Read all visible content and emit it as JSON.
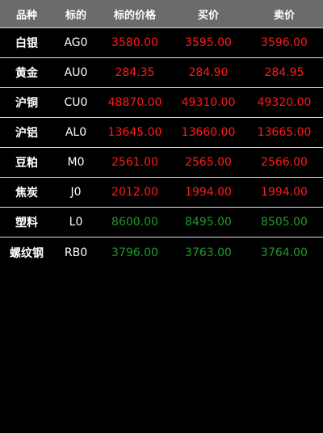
{
  "header": {
    "col_name": "品种",
    "col_code": "标的",
    "col_price": "标的价格",
    "col_buy": "买价",
    "col_sell": "卖价"
  },
  "colors": {
    "header_bg": "#6b6b6b",
    "up": "#ff1a1a",
    "down": "#1f9a2a",
    "text": "#ffffff",
    "background": "#000000"
  },
  "rows": [
    {
      "name": "白银",
      "code": "AG0",
      "price": "3580.00",
      "buy": "3595.00",
      "sell": "3596.00",
      "trend": "up"
    },
    {
      "name": "黄金",
      "code": "AU0",
      "price": "284.35",
      "buy": "284.90",
      "sell": "284.95",
      "trend": "up"
    },
    {
      "name": "沪铜",
      "code": "CU0",
      "price": "48870.00",
      "buy": "49310.00",
      "sell": "49320.00",
      "trend": "up"
    },
    {
      "name": "沪铝",
      "code": "AL0",
      "price": "13645.00",
      "buy": "13660.00",
      "sell": "13665.00",
      "trend": "up"
    },
    {
      "name": "豆粕",
      "code": "M0",
      "price": "2561.00",
      "buy": "2565.00",
      "sell": "2566.00",
      "trend": "up"
    },
    {
      "name": "焦炭",
      "code": "J0",
      "price": "2012.00",
      "buy": "1994.00",
      "sell": "1994.00",
      "trend": "up"
    },
    {
      "name": "塑料",
      "code": "L0",
      "price": "8600.00",
      "buy": "8495.00",
      "sell": "8505.00",
      "trend": "down"
    },
    {
      "name": "螺纹钢",
      "code": "RB0",
      "price": "3796.00",
      "buy": "3763.00",
      "sell": "3764.00",
      "trend": "down"
    }
  ]
}
